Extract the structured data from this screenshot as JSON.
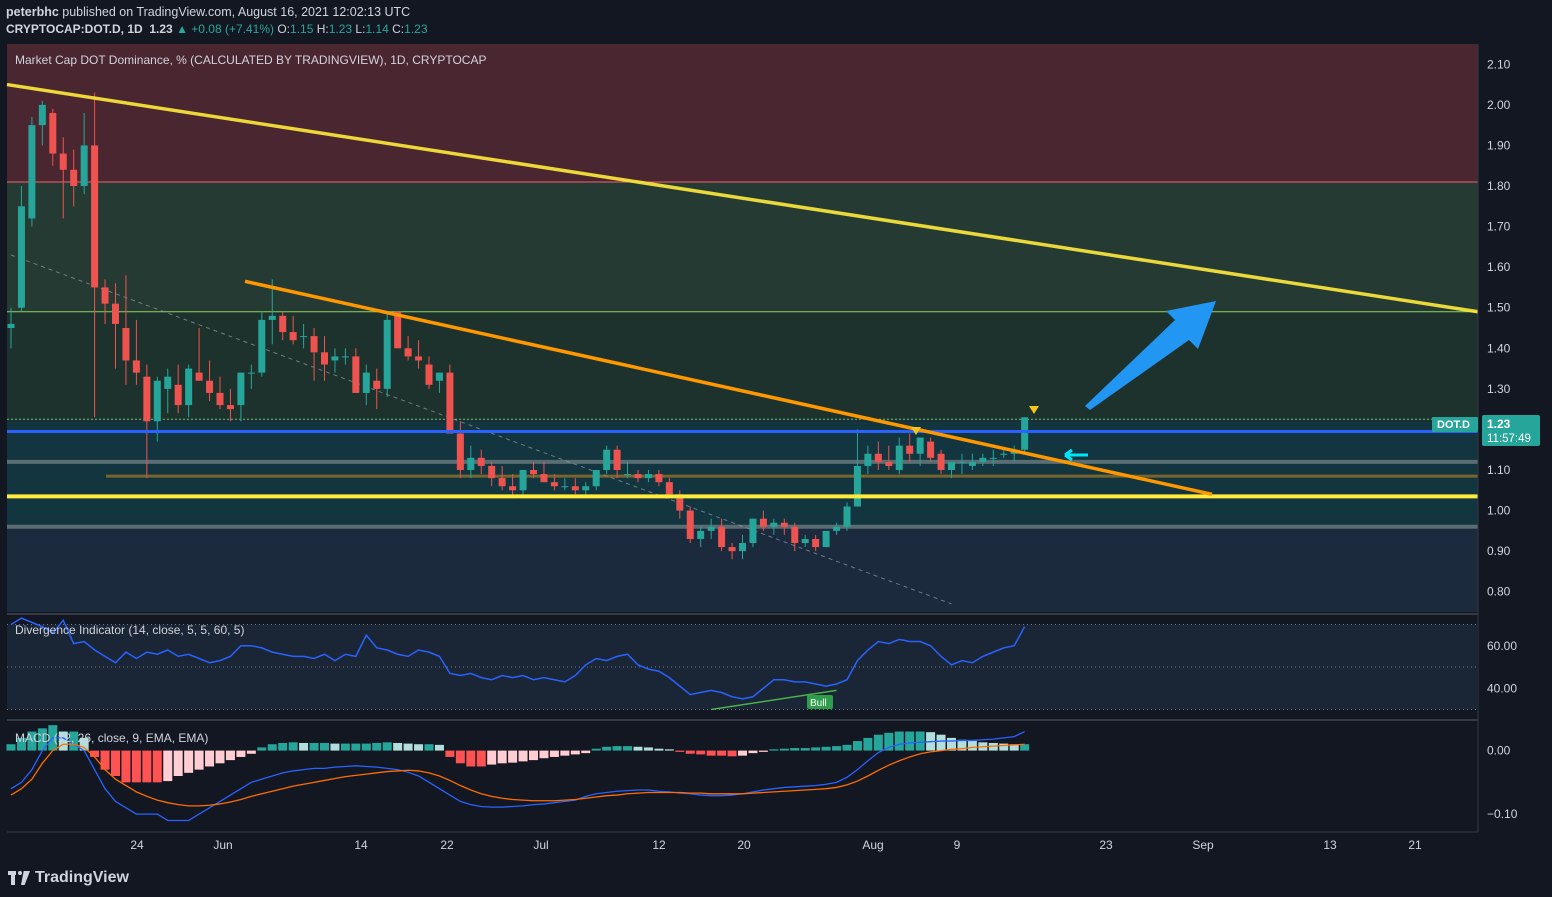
{
  "header": {
    "author": "peterbhc",
    "published": "published on TradingView.com, August 16, 2021 12:02:13 UTC",
    "symbol": "CRYPTOCAP:DOT.D, 1D",
    "last": "1.23",
    "change": "▲ +0.08 (+7.41%)",
    "open_label": "O:",
    "open": "1.15",
    "high_label": "H:",
    "high": "1.23",
    "low_label": "L:",
    "low": "1.14",
    "close_label": "C:",
    "close": "1.23"
  },
  "main_pane": {
    "title": "Market Cap DOT Dominance, % (CALCULATED BY TRADINGVIEW), 1D, CRYPTOCAP",
    "price_tag_symbol": "DOT.D",
    "price_tag_value": "1.23",
    "price_tag_countdown": "11:57:49"
  },
  "indicator_pane": {
    "title": "Divergence Indicator (14, close, 5, 5, 60, 5)",
    "bull_label": "Bull",
    "y_ticks": [
      "60.00",
      "40.00"
    ]
  },
  "macd_pane": {
    "title": "MACD (12, 26, close, 9, EMA, EMA)",
    "y_ticks": [
      "0.00",
      "−0.10"
    ]
  },
  "footer": {
    "brand": "TradingView"
  },
  "colors": {
    "background": "#131722",
    "bull_candle": "#26a69a",
    "bear_candle": "#ef5350",
    "resistance_line": "#ffeb3b",
    "trend_line": "#ff9800",
    "support_blue": "#2962ff",
    "arrow": "#2196f3"
  },
  "chart_data": {
    "type": "candlestick",
    "y_axis": {
      "ylim": [
        0.75,
        2.15
      ],
      "ticks": [
        2.1,
        2.0,
        1.9,
        1.8,
        1.7,
        1.6,
        1.5,
        1.4,
        1.3,
        1.2,
        1.1,
        1.0,
        0.9,
        0.8
      ]
    },
    "x_axis": {
      "ticks": [
        "24",
        "Jun",
        "14",
        "22",
        "Jul",
        "12",
        "20",
        "Aug",
        "9",
        "23",
        "Sep",
        "13",
        "21"
      ]
    },
    "candles": [
      [
        1.45,
        1.5,
        1.4,
        1.46
      ],
      [
        1.5,
        1.8,
        1.49,
        1.75
      ],
      [
        1.72,
        1.97,
        1.7,
        1.95
      ],
      [
        1.95,
        2.01,
        1.9,
        2.0
      ],
      [
        1.98,
        1.99,
        1.85,
        1.88
      ],
      [
        1.88,
        1.92,
        1.72,
        1.84
      ],
      [
        1.84,
        1.89,
        1.75,
        1.8
      ],
      [
        1.8,
        1.98,
        1.78,
        1.9
      ],
      [
        1.9,
        2.03,
        1.23,
        1.55
      ],
      [
        1.55,
        1.57,
        1.46,
        1.51
      ],
      [
        1.51,
        1.56,
        1.35,
        1.46
      ],
      [
        1.45,
        1.58,
        1.31,
        1.37
      ],
      [
        1.37,
        1.47,
        1.31,
        1.34
      ],
      [
        1.33,
        1.36,
        1.08,
        1.22
      ],
      [
        1.22,
        1.33,
        1.17,
        1.32
      ],
      [
        1.3,
        1.35,
        1.24,
        1.33
      ],
      [
        1.31,
        1.36,
        1.24,
        1.26
      ],
      [
        1.26,
        1.36,
        1.23,
        1.35
      ],
      [
        1.34,
        1.45,
        1.32,
        1.32
      ],
      [
        1.32,
        1.37,
        1.27,
        1.29
      ],
      [
        1.29,
        1.33,
        1.25,
        1.26
      ],
      [
        1.26,
        1.3,
        1.22,
        1.25
      ],
      [
        1.26,
        1.34,
        1.22,
        1.34
      ],
      [
        1.34,
        1.36,
        1.3,
        1.34
      ],
      [
        1.34,
        1.49,
        1.33,
        1.47
      ],
      [
        1.47,
        1.57,
        1.41,
        1.48
      ],
      [
        1.48,
        1.49,
        1.42,
        1.44
      ],
      [
        1.44,
        1.48,
        1.41,
        1.42
      ],
      [
        1.43,
        1.46,
        1.4,
        1.43
      ],
      [
        1.43,
        1.45,
        1.32,
        1.39
      ],
      [
        1.39,
        1.43,
        1.32,
        1.36
      ],
      [
        1.37,
        1.4,
        1.34,
        1.38
      ],
      [
        1.38,
        1.4,
        1.36,
        1.38
      ],
      [
        1.38,
        1.4,
        1.29,
        1.29
      ],
      [
        1.29,
        1.36,
        1.26,
        1.34
      ],
      [
        1.32,
        1.35,
        1.25,
        1.3
      ],
      [
        1.3,
        1.49,
        1.28,
        1.47
      ],
      [
        1.49,
        1.49,
        1.4,
        1.4
      ],
      [
        1.4,
        1.43,
        1.37,
        1.38
      ],
      [
        1.38,
        1.42,
        1.35,
        1.37
      ],
      [
        1.36,
        1.38,
        1.3,
        1.31
      ],
      [
        1.32,
        1.34,
        1.29,
        1.34
      ],
      [
        1.34,
        1.36,
        1.19,
        1.19
      ],
      [
        1.19,
        1.22,
        1.08,
        1.1
      ],
      [
        1.1,
        1.16,
        1.08,
        1.13
      ],
      [
        1.13,
        1.15,
        1.09,
        1.11
      ],
      [
        1.11,
        1.12,
        1.06,
        1.08
      ],
      [
        1.08,
        1.11,
        1.05,
        1.06
      ],
      [
        1.06,
        1.09,
        1.03,
        1.05
      ],
      [
        1.05,
        1.1,
        1.04,
        1.1
      ],
      [
        1.1,
        1.12,
        1.08,
        1.09
      ],
      [
        1.09,
        1.12,
        1.07,
        1.07
      ],
      [
        1.07,
        1.09,
        1.05,
        1.06
      ],
      [
        1.06,
        1.08,
        1.05,
        1.06
      ],
      [
        1.06,
        1.08,
        1.04,
        1.05
      ],
      [
        1.05,
        1.07,
        1.04,
        1.06
      ],
      [
        1.06,
        1.1,
        1.05,
        1.1
      ],
      [
        1.1,
        1.16,
        1.09,
        1.15
      ],
      [
        1.15,
        1.16,
        1.08,
        1.1
      ],
      [
        1.09,
        1.12,
        1.08,
        1.09
      ],
      [
        1.09,
        1.1,
        1.07,
        1.08
      ],
      [
        1.08,
        1.1,
        1.07,
        1.09
      ],
      [
        1.09,
        1.1,
        1.06,
        1.07
      ],
      [
        1.07,
        1.08,
        1.03,
        1.04
      ],
      [
        1.04,
        1.05,
        0.98,
        1.0
      ],
      [
        1.0,
        1.01,
        0.92,
        0.93
      ],
      [
        0.93,
        0.96,
        0.91,
        0.95
      ],
      [
        0.95,
        0.98,
        0.93,
        0.96
      ],
      [
        0.96,
        0.98,
        0.9,
        0.91
      ],
      [
        0.91,
        0.92,
        0.88,
        0.9
      ],
      [
        0.9,
        0.94,
        0.88,
        0.92
      ],
      [
        0.92,
        0.98,
        0.91,
        0.98
      ],
      [
        0.98,
        1.0,
        0.95,
        0.96
      ],
      [
        0.96,
        0.98,
        0.94,
        0.97
      ],
      [
        0.97,
        0.98,
        0.94,
        0.96
      ],
      [
        0.96,
        0.97,
        0.9,
        0.92
      ],
      [
        0.92,
        0.94,
        0.91,
        0.93
      ],
      [
        0.93,
        0.94,
        0.9,
        0.91
      ],
      [
        0.91,
        0.95,
        0.91,
        0.95
      ],
      [
        0.95,
        0.97,
        0.94,
        0.96
      ],
      [
        0.96,
        1.02,
        0.95,
        1.01
      ],
      [
        1.01,
        1.2,
        1.01,
        1.11
      ],
      [
        1.11,
        1.16,
        1.09,
        1.14
      ],
      [
        1.14,
        1.17,
        1.1,
        1.12
      ],
      [
        1.12,
        1.16,
        1.1,
        1.11
      ],
      [
        1.1,
        1.18,
        1.09,
        1.16
      ],
      [
        1.16,
        1.19,
        1.12,
        1.14
      ],
      [
        1.14,
        1.17,
        1.11,
        1.18
      ],
      [
        1.17,
        1.18,
        1.12,
        1.13
      ],
      [
        1.14,
        1.15,
        1.09,
        1.1
      ],
      [
        1.1,
        1.12,
        1.08,
        1.12
      ],
      [
        1.12,
        1.14,
        1.09,
        1.12
      ],
      [
        1.11,
        1.14,
        1.1,
        1.12
      ],
      [
        1.12,
        1.14,
        1.11,
        1.13
      ],
      [
        1.13,
        1.15,
        1.11,
        1.13
      ],
      [
        1.14,
        1.15,
        1.13,
        1.14
      ],
      [
        1.14,
        1.16,
        1.12,
        1.15
      ],
      [
        1.15,
        1.23,
        1.14,
        1.23
      ]
    ],
    "zones": [
      {
        "name": "upper",
        "from": 1.81,
        "to": 2.15,
        "color": "#4a2630"
      },
      {
        "name": "mid",
        "from": 1.49,
        "to": 1.81,
        "color": "#263a34"
      },
      {
        "name": "lower",
        "from": 1.22,
        "to": 1.49,
        "color": "#1e322d"
      },
      {
        "name": "base",
        "from": 0.96,
        "to": 1.22,
        "color": "#13353f"
      },
      {
        "name": "bottom",
        "from": 0.75,
        "to": 0.96,
        "color": "#1b2a3c"
      }
    ],
    "lines": {
      "long_resistance": [
        [
          0,
          2.05
        ],
        [
          128,
          1.49
        ]
      ],
      "trend_resistance": [
        [
          20,
          1.565
        ],
        [
          100,
          1.04
        ]
      ],
      "dashed_trend": [
        [
          0,
          1.63
        ],
        [
          90,
          0.77
        ]
      ],
      "blue_support": 1.195,
      "yellow_support": 1.035,
      "gray_1": 1.12,
      "gray_2": 0.96,
      "brown_1": 1.085,
      "level_1_81": 1.81,
      "level_1_49": 1.49,
      "level_1_225": 1.225
    },
    "divergence_series": [
      70,
      73,
      71,
      69,
      66,
      72,
      61,
      62,
      58,
      55,
      52,
      57,
      54,
      57,
      56,
      58,
      55,
      56,
      54,
      52,
      53,
      55,
      60,
      60,
      59,
      57,
      56,
      55,
      55,
      54,
      56,
      53,
      56,
      55,
      65,
      59,
      58,
      56,
      55,
      58,
      57,
      55,
      47,
      46,
      47,
      45,
      44,
      46,
      45,
      46,
      44,
      45,
      44,
      43,
      46,
      51,
      54,
      53,
      55,
      56,
      51,
      49,
      48,
      45,
      41,
      37,
      38,
      39,
      38,
      36,
      35,
      36,
      40,
      44,
      44,
      43,
      43,
      42,
      41,
      42,
      44,
      53,
      58,
      62,
      61,
      63,
      62,
      62,
      60,
      55,
      51,
      53,
      52,
      55,
      57,
      59,
      60,
      69
    ],
    "macd_histogram": [
      0.01,
      0.02,
      0.03,
      0.035,
      0.04,
      0.03,
      0.03,
      0.02,
      -0.01,
      -0.03,
      -0.04,
      -0.05,
      -0.05,
      -0.05,
      -0.05,
      -0.048,
      -0.04,
      -0.035,
      -0.03,
      -0.025,
      -0.02,
      -0.015,
      -0.01,
      -0.005,
      0.005,
      0.01,
      0.012,
      0.013,
      0.012,
      0.012,
      0.012,
      0.011,
      0.011,
      0.011,
      0.011,
      0.012,
      0.013,
      0.012,
      0.011,
      0.01,
      0.01,
      0.009,
      -0.01,
      -0.02,
      -0.025,
      -0.025,
      -0.022,
      -0.02,
      -0.019,
      -0.017,
      -0.015,
      -0.012,
      -0.01,
      -0.008,
      -0.006,
      -0.004,
      0.003,
      0.006,
      0.007,
      0.007,
      0.006,
      0.005,
      0.003,
      0.002,
      -0.002,
      -0.005,
      -0.006,
      -0.008,
      -0.008,
      -0.009,
      -0.008,
      -0.004,
      -0.002,
      0.002,
      0.003,
      0.004,
      0.004,
      0.005,
      0.006,
      0.007,
      0.009,
      0.015,
      0.02,
      0.025,
      0.028,
      0.03,
      0.03,
      0.03,
      0.029,
      0.025,
      0.02,
      0.017,
      0.015,
      0.013,
      0.012,
      0.011,
      0.01,
      0.01
    ],
    "macd_line": [
      -0.06,
      -0.05,
      -0.03,
      0.0,
      0.02,
      0.02,
      0.01,
      0.0,
      -0.03,
      -0.06,
      -0.08,
      -0.09,
      -0.1,
      -0.1,
      -0.1,
      -0.11,
      -0.11,
      -0.11,
      -0.1,
      -0.09,
      -0.08,
      -0.07,
      -0.06,
      -0.05,
      -0.045,
      -0.04,
      -0.035,
      -0.032,
      -0.03,
      -0.028,
      -0.028,
      -0.026,
      -0.025,
      -0.024,
      -0.025,
      -0.026,
      -0.028,
      -0.03,
      -0.034,
      -0.04,
      -0.05,
      -0.06,
      -0.07,
      -0.08,
      -0.085,
      -0.088,
      -0.089,
      -0.089,
      -0.088,
      -0.087,
      -0.085,
      -0.084,
      -0.082,
      -0.08,
      -0.078,
      -0.072,
      -0.068,
      -0.066,
      -0.064,
      -0.063,
      -0.062,
      -0.062,
      -0.064,
      -0.065,
      -0.067,
      -0.068,
      -0.07,
      -0.071,
      -0.071,
      -0.07,
      -0.068,
      -0.065,
      -0.062,
      -0.06,
      -0.058,
      -0.057,
      -0.056,
      -0.055,
      -0.053,
      -0.05,
      -0.042,
      -0.03,
      -0.016,
      -0.003,
      0.005,
      0.01,
      0.012,
      0.013,
      0.014,
      0.015,
      0.015,
      0.016,
      0.016,
      0.017,
      0.018,
      0.02,
      0.022,
      0.03
    ],
    "signal_line": [
      -0.07,
      -0.06,
      -0.045,
      -0.02,
      0.0,
      0.01,
      0.01,
      0.005,
      -0.01,
      -0.03,
      -0.045,
      -0.055,
      -0.065,
      -0.072,
      -0.078,
      -0.082,
      -0.085,
      -0.087,
      -0.087,
      -0.086,
      -0.084,
      -0.081,
      -0.077,
      -0.072,
      -0.068,
      -0.064,
      -0.06,
      -0.056,
      -0.053,
      -0.05,
      -0.047,
      -0.044,
      -0.041,
      -0.039,
      -0.037,
      -0.035,
      -0.033,
      -0.032,
      -0.031,
      -0.032,
      -0.035,
      -0.04,
      -0.047,
      -0.055,
      -0.062,
      -0.068,
      -0.072,
      -0.075,
      -0.077,
      -0.078,
      -0.079,
      -0.079,
      -0.079,
      -0.078,
      -0.077,
      -0.075,
      -0.073,
      -0.071,
      -0.07,
      -0.068,
      -0.067,
      -0.066,
      -0.066,
      -0.066,
      -0.066,
      -0.067,
      -0.067,
      -0.068,
      -0.068,
      -0.068,
      -0.068,
      -0.067,
      -0.066,
      -0.065,
      -0.064,
      -0.063,
      -0.062,
      -0.061,
      -0.06,
      -0.058,
      -0.054,
      -0.048,
      -0.04,
      -0.031,
      -0.023,
      -0.016,
      -0.01,
      -0.005,
      -0.002,
      0.0,
      0.002,
      0.003,
      0.005,
      0.006,
      0.007,
      0.008,
      0.009,
      0.01
    ]
  }
}
